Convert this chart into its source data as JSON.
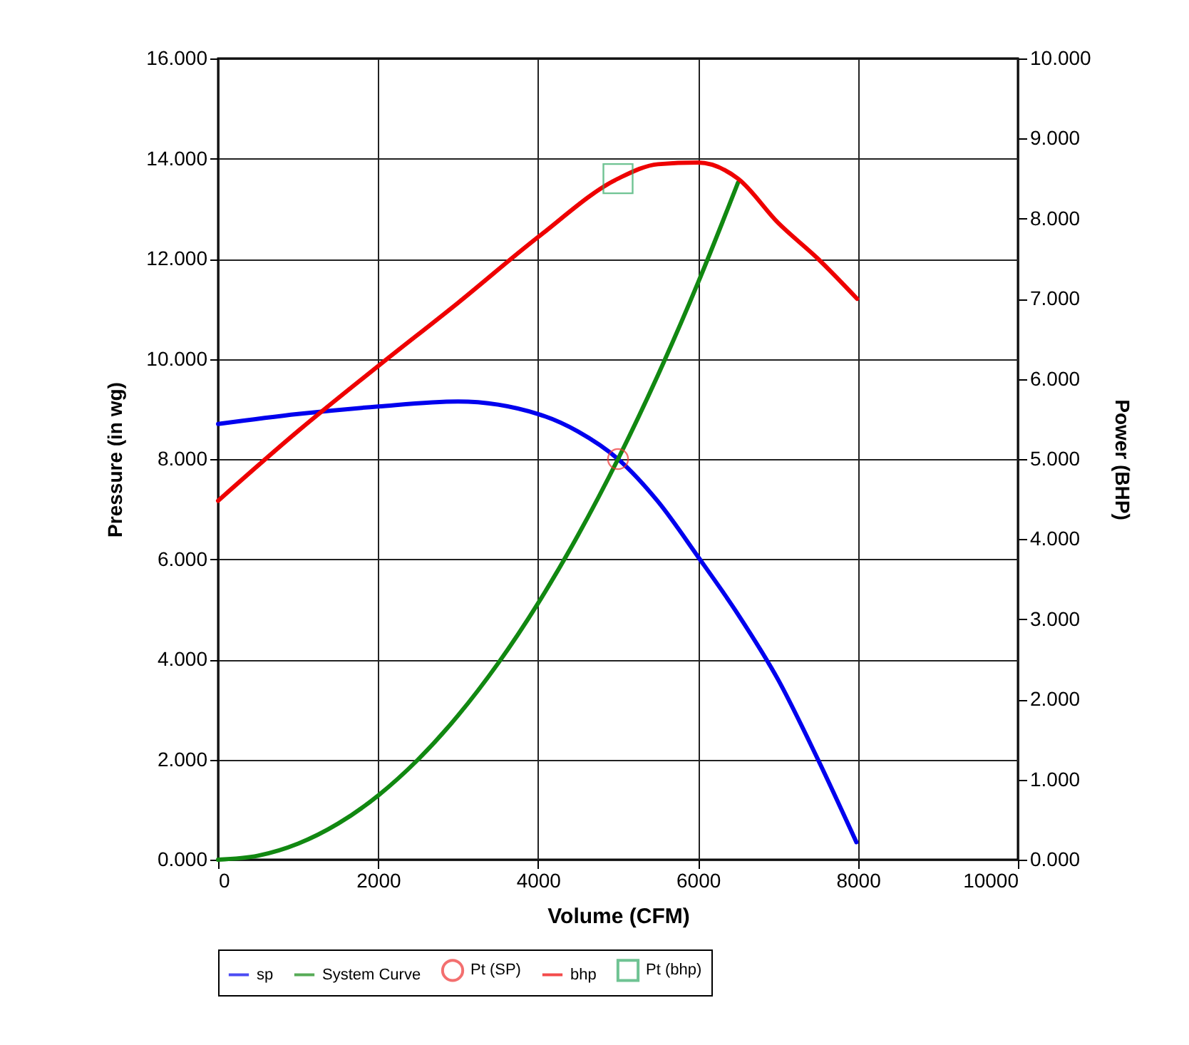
{
  "chart_data": {
    "type": "line",
    "xlabel": "Volume (CFM)",
    "ylabel": "Pressure (in wg)",
    "y2label": "Power (BHP)",
    "xlim": [
      0,
      10000
    ],
    "xticks": [
      0,
      2000,
      4000,
      6000,
      8000,
      10000
    ],
    "ylim": [
      0,
      16
    ],
    "yticks": [
      {
        "value": 0,
        "label": "0.000"
      },
      {
        "value": 2,
        "label": "2.000"
      },
      {
        "value": 4,
        "label": "4.000"
      },
      {
        "value": 6,
        "label": "6.000"
      },
      {
        "value": 8,
        "label": "8.000"
      },
      {
        "value": 10,
        "label": "10.000"
      },
      {
        "value": 12,
        "label": "12.000"
      },
      {
        "value": 14,
        "label": "14.000"
      },
      {
        "value": 16,
        "label": "16.000"
      }
    ],
    "y2lim": [
      0,
      10
    ],
    "y2ticks": [
      {
        "value": 0,
        "label": "0.000"
      },
      {
        "value": 1,
        "label": "1.000"
      },
      {
        "value": 2,
        "label": "2.000"
      },
      {
        "value": 3,
        "label": "3.000"
      },
      {
        "value": 4,
        "label": "4.000"
      },
      {
        "value": 5,
        "label": "5.000"
      },
      {
        "value": 6,
        "label": "6.000"
      },
      {
        "value": 7,
        "label": "7.000"
      },
      {
        "value": 8,
        "label": "8.000"
      },
      {
        "value": 9,
        "label": "9.000"
      },
      {
        "value": 10,
        "label": "10.000"
      }
    ],
    "grid": true,
    "legend": "bottom",
    "series": [
      {
        "name": "sp",
        "color": "#0000ee",
        "x": [
          0,
          1000,
          2000,
          3000,
          4000,
          4500,
          5000,
          5500,
          6000,
          6500,
          7000,
          7500,
          7980
        ],
        "values": [
          8.7,
          8.9,
          9.05,
          9.15,
          8.9,
          8.55,
          8.0,
          7.15,
          6.05,
          4.9,
          3.6,
          2.0,
          0.35
        ]
      },
      {
        "name": "System Curve",
        "color": "#118811",
        "x": [
          0,
          500,
          1000,
          1500,
          2000,
          2500,
          3000,
          3500,
          4000,
          4500,
          5000,
          5500,
          6000,
          6500
        ],
        "values": [
          0,
          0.08,
          0.32,
          0.72,
          1.28,
          2.0,
          2.88,
          3.92,
          5.12,
          6.48,
          8.0,
          9.68,
          11.52,
          13.52
        ]
      },
      {
        "name": "Pt (SP)",
        "type": "scatter",
        "marker": "circle",
        "color": "#ee3333",
        "x": [
          5000
        ],
        "values": [
          8.0
        ]
      },
      {
        "name": "bhp",
        "axis": "y2",
        "color": "#ee0000",
        "x": [
          0,
          1000,
          2000,
          3000,
          4000,
          5000,
          5500,
          6000,
          6500,
          7000,
          7500,
          7990
        ],
        "values": [
          4.48,
          5.35,
          6.16,
          6.95,
          7.77,
          8.5,
          8.68,
          8.7,
          8.5,
          7.95,
          7.5,
          7.0
        ]
      },
      {
        "name": "Pt (bhp)",
        "type": "scatter",
        "marker": "square",
        "axis": "y2",
        "color": "#33aa66",
        "x": [
          5000
        ],
        "values": [
          8.5
        ]
      }
    ]
  }
}
